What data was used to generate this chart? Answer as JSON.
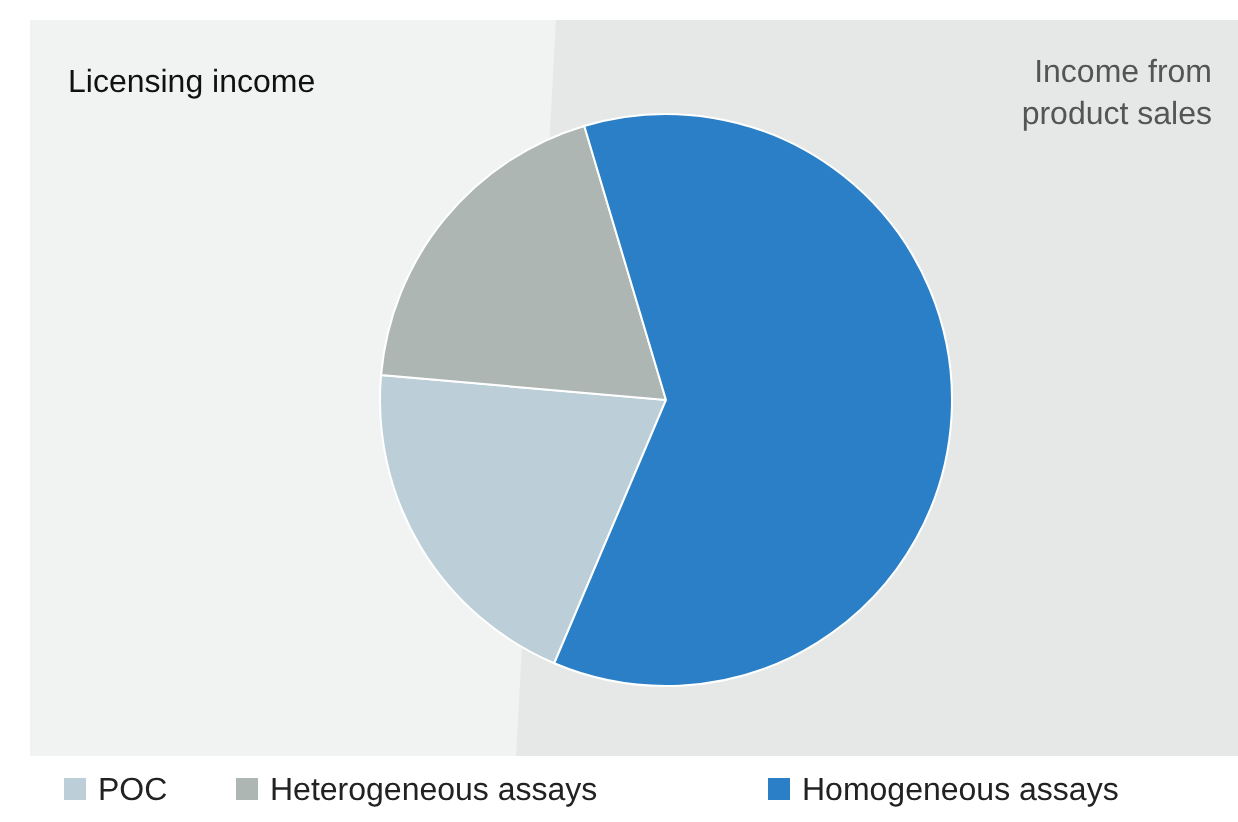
{
  "chart_data": {
    "type": "pie",
    "categories": [
      "POC",
      "Heterogeneous assays",
      "Homogeneous assays"
    ],
    "values": [
      20,
      19,
      61
    ],
    "colors": [
      "#bccfd9",
      "#adb6b3",
      "#2a7fc6"
    ],
    "annotations": [
      "Licensing income",
      "Income from product sales"
    ],
    "legend": "bottom"
  }
}
